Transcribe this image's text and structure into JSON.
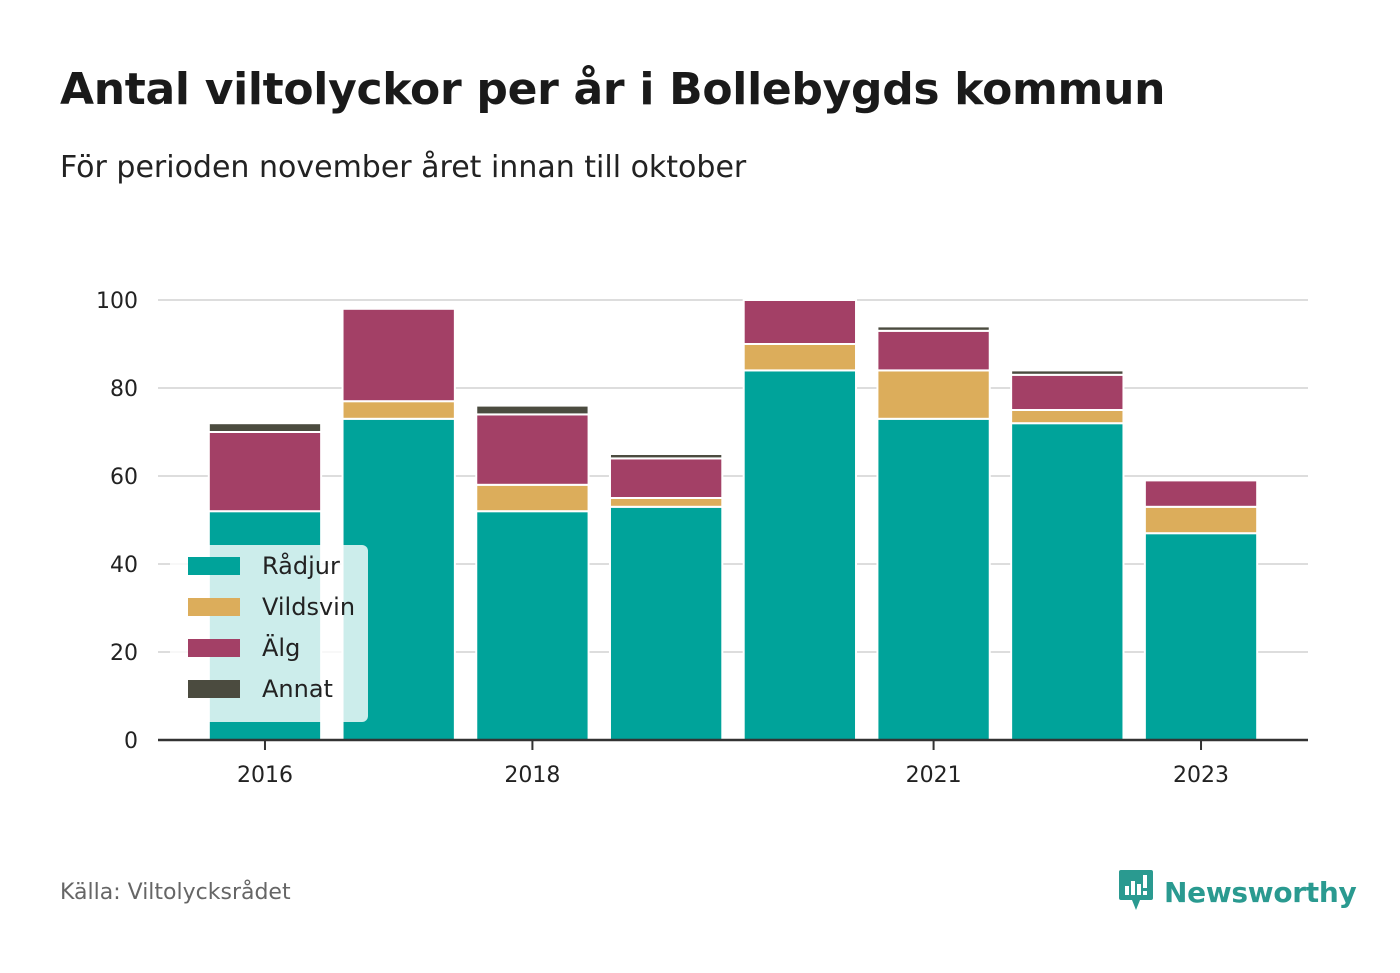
{
  "title": "Antal viltolyckor per år i Bollebygds kommun",
  "subtitle": "För perioden november året innan till oktober",
  "source": "Källa: Viltolycksrådet",
  "brand": {
    "name": "Newsworthy",
    "icon": "newsworthy-logo-icon",
    "color": "#2a9a90"
  },
  "chart_data": {
    "type": "bar",
    "stacked": true,
    "x": [
      2016,
      2017,
      2018,
      2019,
      2020,
      2021,
      2022,
      2023
    ],
    "x_tick_labels": [
      "2016",
      "2018",
      "2021",
      "2023"
    ],
    "x_tick_values": [
      2016,
      2018,
      2021,
      2023
    ],
    "ylim": [
      0,
      100
    ],
    "y_ticks": [
      0,
      20,
      40,
      60,
      80,
      100
    ],
    "grid": true,
    "legend_position": "bottom-left",
    "series": [
      {
        "name": "Rådjur",
        "color": "#00a39a",
        "values": [
          52,
          73,
          52,
          53,
          84,
          73,
          72,
          47
        ]
      },
      {
        "name": "Vildsvin",
        "color": "#dcad5b",
        "values": [
          0,
          4,
          6,
          2,
          6,
          11,
          3,
          6
        ]
      },
      {
        "name": "Älg",
        "color": "#a34066",
        "values": [
          18,
          21,
          16,
          9,
          10,
          9,
          8,
          6
        ]
      },
      {
        "name": "Annat",
        "color": "#4b4b3f",
        "values": [
          2,
          0,
          2,
          1,
          0,
          1,
          1,
          0
        ]
      }
    ]
  }
}
